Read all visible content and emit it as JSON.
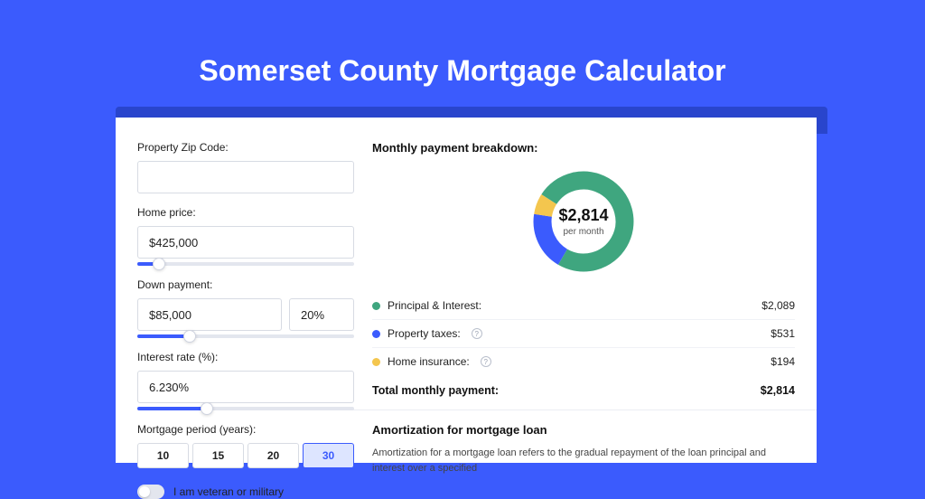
{
  "page": {
    "title": "Somerset County Mortgage Calculator"
  },
  "colors": {
    "brand": "#3b5bfd",
    "principal": "#3fa67f",
    "taxes": "#3b5bfd",
    "insurance": "#f4c64e"
  },
  "inputs": {
    "zip": {
      "label": "Property Zip Code:",
      "value": ""
    },
    "home_price": {
      "label": "Home price:",
      "value": "$425,000",
      "slider_pct": 10
    },
    "down_payment": {
      "label": "Down payment:",
      "value": "$85,000",
      "pct_value": "20%",
      "slider_pct": 24
    },
    "interest_rate": {
      "label": "Interest rate (%):",
      "value": "6.230%",
      "slider_pct": 32
    },
    "mortgage_period": {
      "label": "Mortgage period (years):",
      "options": [
        "10",
        "15",
        "20",
        "30"
      ],
      "selected": "30"
    },
    "veteran": {
      "label": "I am veteran or military",
      "checked": false
    }
  },
  "breakdown": {
    "title": "Monthly payment breakdown:",
    "center_value": "$2,814",
    "center_sub": "per month",
    "items": [
      {
        "label": "Principal & Interest:",
        "value": "$2,089",
        "color": "#3fa67f",
        "share": 0.742,
        "info": false
      },
      {
        "label": "Property taxes:",
        "value": "$531",
        "color": "#3b5bfd",
        "share": 0.189,
        "info": true
      },
      {
        "label": "Home insurance:",
        "value": "$194",
        "color": "#f4c64e",
        "share": 0.069,
        "info": true
      }
    ],
    "total_label": "Total monthly payment:",
    "total_value": "$2,814"
  },
  "amortization": {
    "title": "Amortization for mortgage loan",
    "text": "Amortization for a mortgage loan refers to the gradual repayment of the loan principal and interest over a specified"
  }
}
